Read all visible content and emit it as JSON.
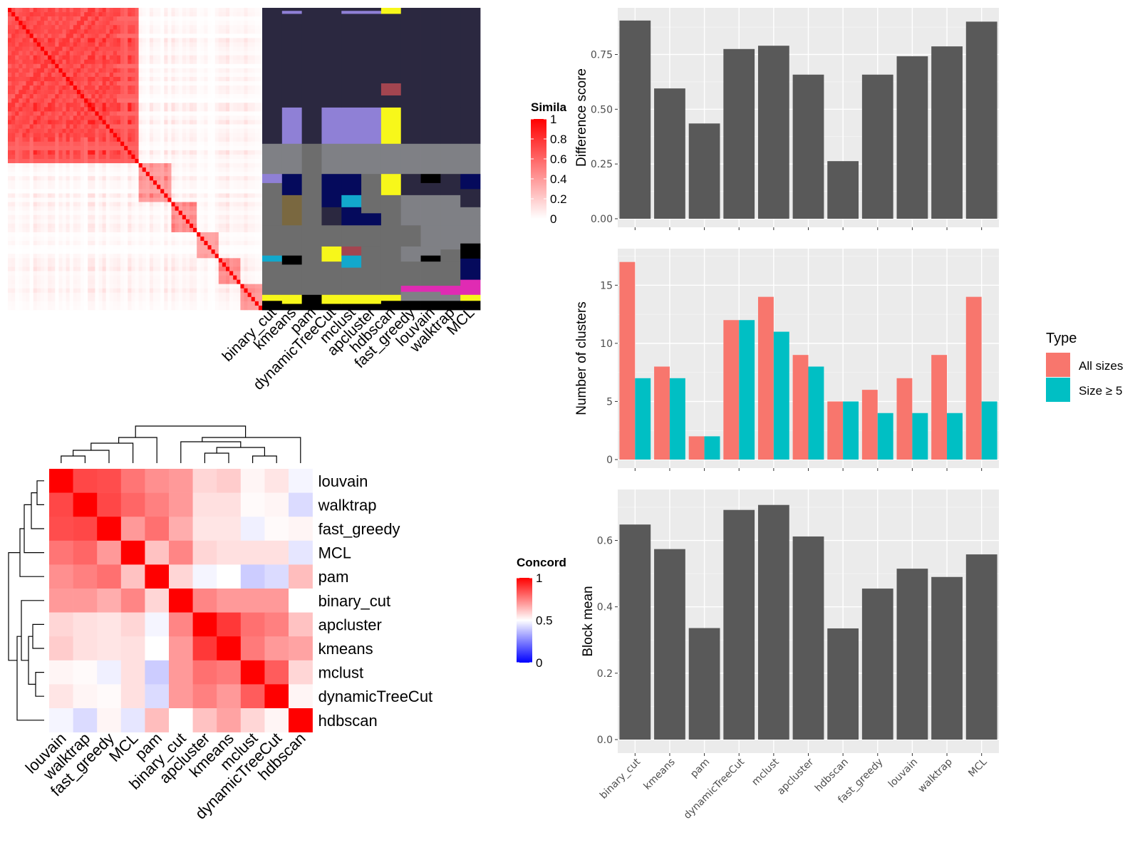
{
  "similarity_panel": {
    "legend_title": "Simila",
    "legend_ticks": [
      "1",
      "0.8",
      "0.6",
      "0.4",
      "0.2",
      "0"
    ],
    "legend_values": [
      1,
      0.8,
      0.6,
      0.4,
      0.2,
      0
    ],
    "colors": {
      "high": "#ff0000",
      "low": "#ffffff"
    },
    "method_labels": [
      "binary_cut",
      "kmeans",
      "pam",
      "dynamicTreeCut",
      "mclust",
      "apcluster",
      "hdbscan",
      "fast_greedy",
      "louvain",
      "walktrap",
      "MCL"
    ],
    "cluster_colors": [
      "#2b2840",
      "#8f80d6",
      "#7f8085",
      "#6d6d6d",
      "#050a5c",
      "#f7f71a",
      "#a34550",
      "#4a4535",
      "#12a8cc",
      "#e02bb3",
      "#000000",
      "#7a6840"
    ]
  },
  "concordance_panel": {
    "legend_title": "Concord",
    "legend_ticks": [
      "1",
      "0.5",
      "0"
    ],
    "legend_values": [
      1,
      0.5,
      0
    ],
    "colors": {
      "high": "#ff0000",
      "mid": "#ffffff",
      "low": "#0000ff"
    },
    "order": [
      "louvain",
      "walktrap",
      "fast_greedy",
      "MCL",
      "pam",
      "binary_cut",
      "apcluster",
      "kmeans",
      "mclust",
      "dynamicTreeCut",
      "hdbscan"
    ],
    "matrix": [
      [
        1.0,
        0.86,
        0.85,
        0.77,
        0.72,
        0.7,
        0.58,
        0.6,
        0.52,
        0.55,
        0.48
      ],
      [
        0.86,
        1.0,
        0.86,
        0.8,
        0.75,
        0.7,
        0.56,
        0.56,
        0.51,
        0.52,
        0.43
      ],
      [
        0.85,
        0.86,
        1.0,
        0.7,
        0.78,
        0.66,
        0.55,
        0.55,
        0.47,
        0.51,
        0.52
      ],
      [
        0.77,
        0.8,
        0.7,
        1.0,
        0.62,
        0.74,
        0.58,
        0.56,
        0.56,
        0.56,
        0.45
      ],
      [
        0.72,
        0.75,
        0.78,
        0.62,
        1.0,
        0.58,
        0.48,
        0.5,
        0.4,
        0.43,
        0.63
      ],
      [
        0.7,
        0.7,
        0.66,
        0.74,
        0.58,
        1.0,
        0.74,
        0.7,
        0.7,
        0.7,
        0.5
      ],
      [
        0.58,
        0.56,
        0.55,
        0.58,
        0.48,
        0.74,
        1.0,
        0.89,
        0.78,
        0.75,
        0.62
      ],
      [
        0.6,
        0.56,
        0.55,
        0.56,
        0.5,
        0.7,
        0.89,
        1.0,
        0.76,
        0.7,
        0.68
      ],
      [
        0.52,
        0.51,
        0.47,
        0.56,
        0.4,
        0.7,
        0.78,
        0.76,
        1.0,
        0.82,
        0.58
      ],
      [
        0.55,
        0.52,
        0.51,
        0.56,
        0.43,
        0.7,
        0.75,
        0.7,
        0.82,
        1.0,
        0.52
      ],
      [
        0.48,
        0.43,
        0.52,
        0.45,
        0.63,
        0.5,
        0.62,
        0.68,
        0.58,
        0.52,
        1.0
      ]
    ]
  },
  "chart_data": [
    {
      "type": "bar",
      "categories": [
        "binary_cut",
        "kmeans",
        "pam",
        "dynamicTreeCut",
        "mclust",
        "apcluster",
        "hdbscan",
        "fast_greedy",
        "louvain",
        "walktrap",
        "MCL"
      ],
      "values": [
        0.905,
        0.595,
        0.435,
        0.775,
        0.79,
        0.658,
        0.263,
        0.658,
        0.742,
        0.787,
        0.9
      ],
      "ylabel": "Difference score",
      "ylim": [
        0,
        0.95
      ],
      "yticks": [
        "0.00",
        "0.25",
        "0.50",
        "0.75"
      ],
      "ytick_values": [
        0,
        0.25,
        0.5,
        0.75
      ],
      "grid": true,
      "color": "#595959"
    },
    {
      "type": "bar",
      "categories": [
        "binary_cut",
        "kmeans",
        "pam",
        "dynamicTreeCut",
        "mclust",
        "apcluster",
        "hdbscan",
        "fast_greedy",
        "louvain",
        "walktrap",
        "MCL"
      ],
      "series": [
        {
          "name": "All sizes",
          "values": [
            17,
            8,
            2,
            12,
            14,
            9,
            5,
            6,
            7,
            9,
            14
          ],
          "color": "#f8766d"
        },
        {
          "name": "Size ≥ 5",
          "values": [
            7,
            7,
            2,
            12,
            11,
            8,
            5,
            4,
            4,
            4,
            5
          ],
          "color": "#00bfc4"
        }
      ],
      "ylabel": "Number of clusters",
      "ylim": [
        0,
        17.9
      ],
      "yticks": [
        "0",
        "5",
        "10",
        "15"
      ],
      "ytick_values": [
        0,
        5,
        10,
        15
      ],
      "legend_title": "Type",
      "legend_position": "right",
      "grid": true
    },
    {
      "type": "bar",
      "categories": [
        "binary_cut",
        "kmeans",
        "pam",
        "dynamicTreeCut",
        "mclust",
        "apcluster",
        "hdbscan",
        "fast_greedy",
        "louvain",
        "walktrap",
        "MCL"
      ],
      "values": [
        0.648,
        0.574,
        0.336,
        0.692,
        0.707,
        0.612,
        0.335,
        0.455,
        0.515,
        0.49,
        0.558
      ],
      "ylabel": "Block mean",
      "ylim": [
        0,
        0.745
      ],
      "yticks": [
        "0.0",
        "0.2",
        "0.4",
        "0.6"
      ],
      "ytick_values": [
        0,
        0.2,
        0.4,
        0.6
      ],
      "grid": true,
      "color": "#595959"
    }
  ]
}
